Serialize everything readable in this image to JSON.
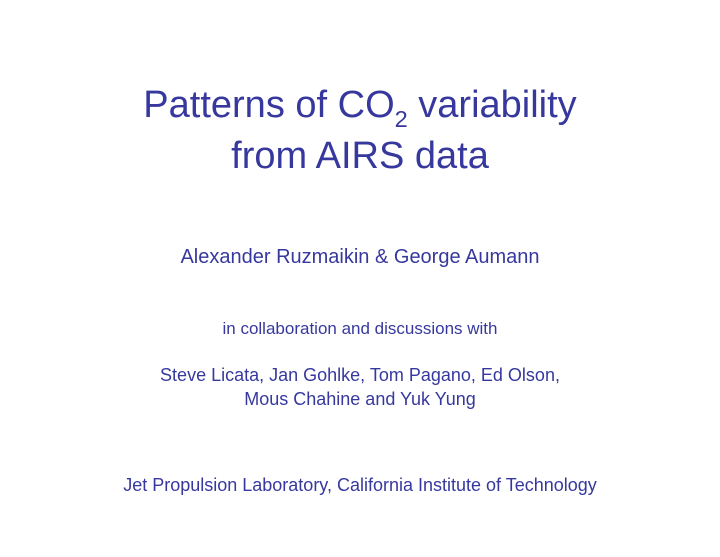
{
  "colors": {
    "text": "#37389e",
    "background": "#ffffff"
  },
  "typography": {
    "title_fontsize_pt": 38,
    "authors_fontsize_pt": 20,
    "collab_label_fontsize_pt": 17,
    "collaborators_fontsize_pt": 18,
    "affiliation_fontsize_pt": 18,
    "font_family": "Century Gothic / geometric sans-serif",
    "font_weight": 400
  },
  "title": {
    "pre": "Patterns of CO",
    "sub": "2",
    "post": " variability",
    "line2": "from AIRS data"
  },
  "authors": "Alexander Ruzmaikin & George Aumann",
  "collab_label": "in collaboration and discussions with",
  "collaborators": {
    "line1": "Steve Licata, Jan Gohlke, Tom Pagano, Ed Olson,",
    "line2": "Mous Chahine and Yuk Yung"
  },
  "affiliation": "Jet Propulsion Laboratory, California Institute of Technology"
}
